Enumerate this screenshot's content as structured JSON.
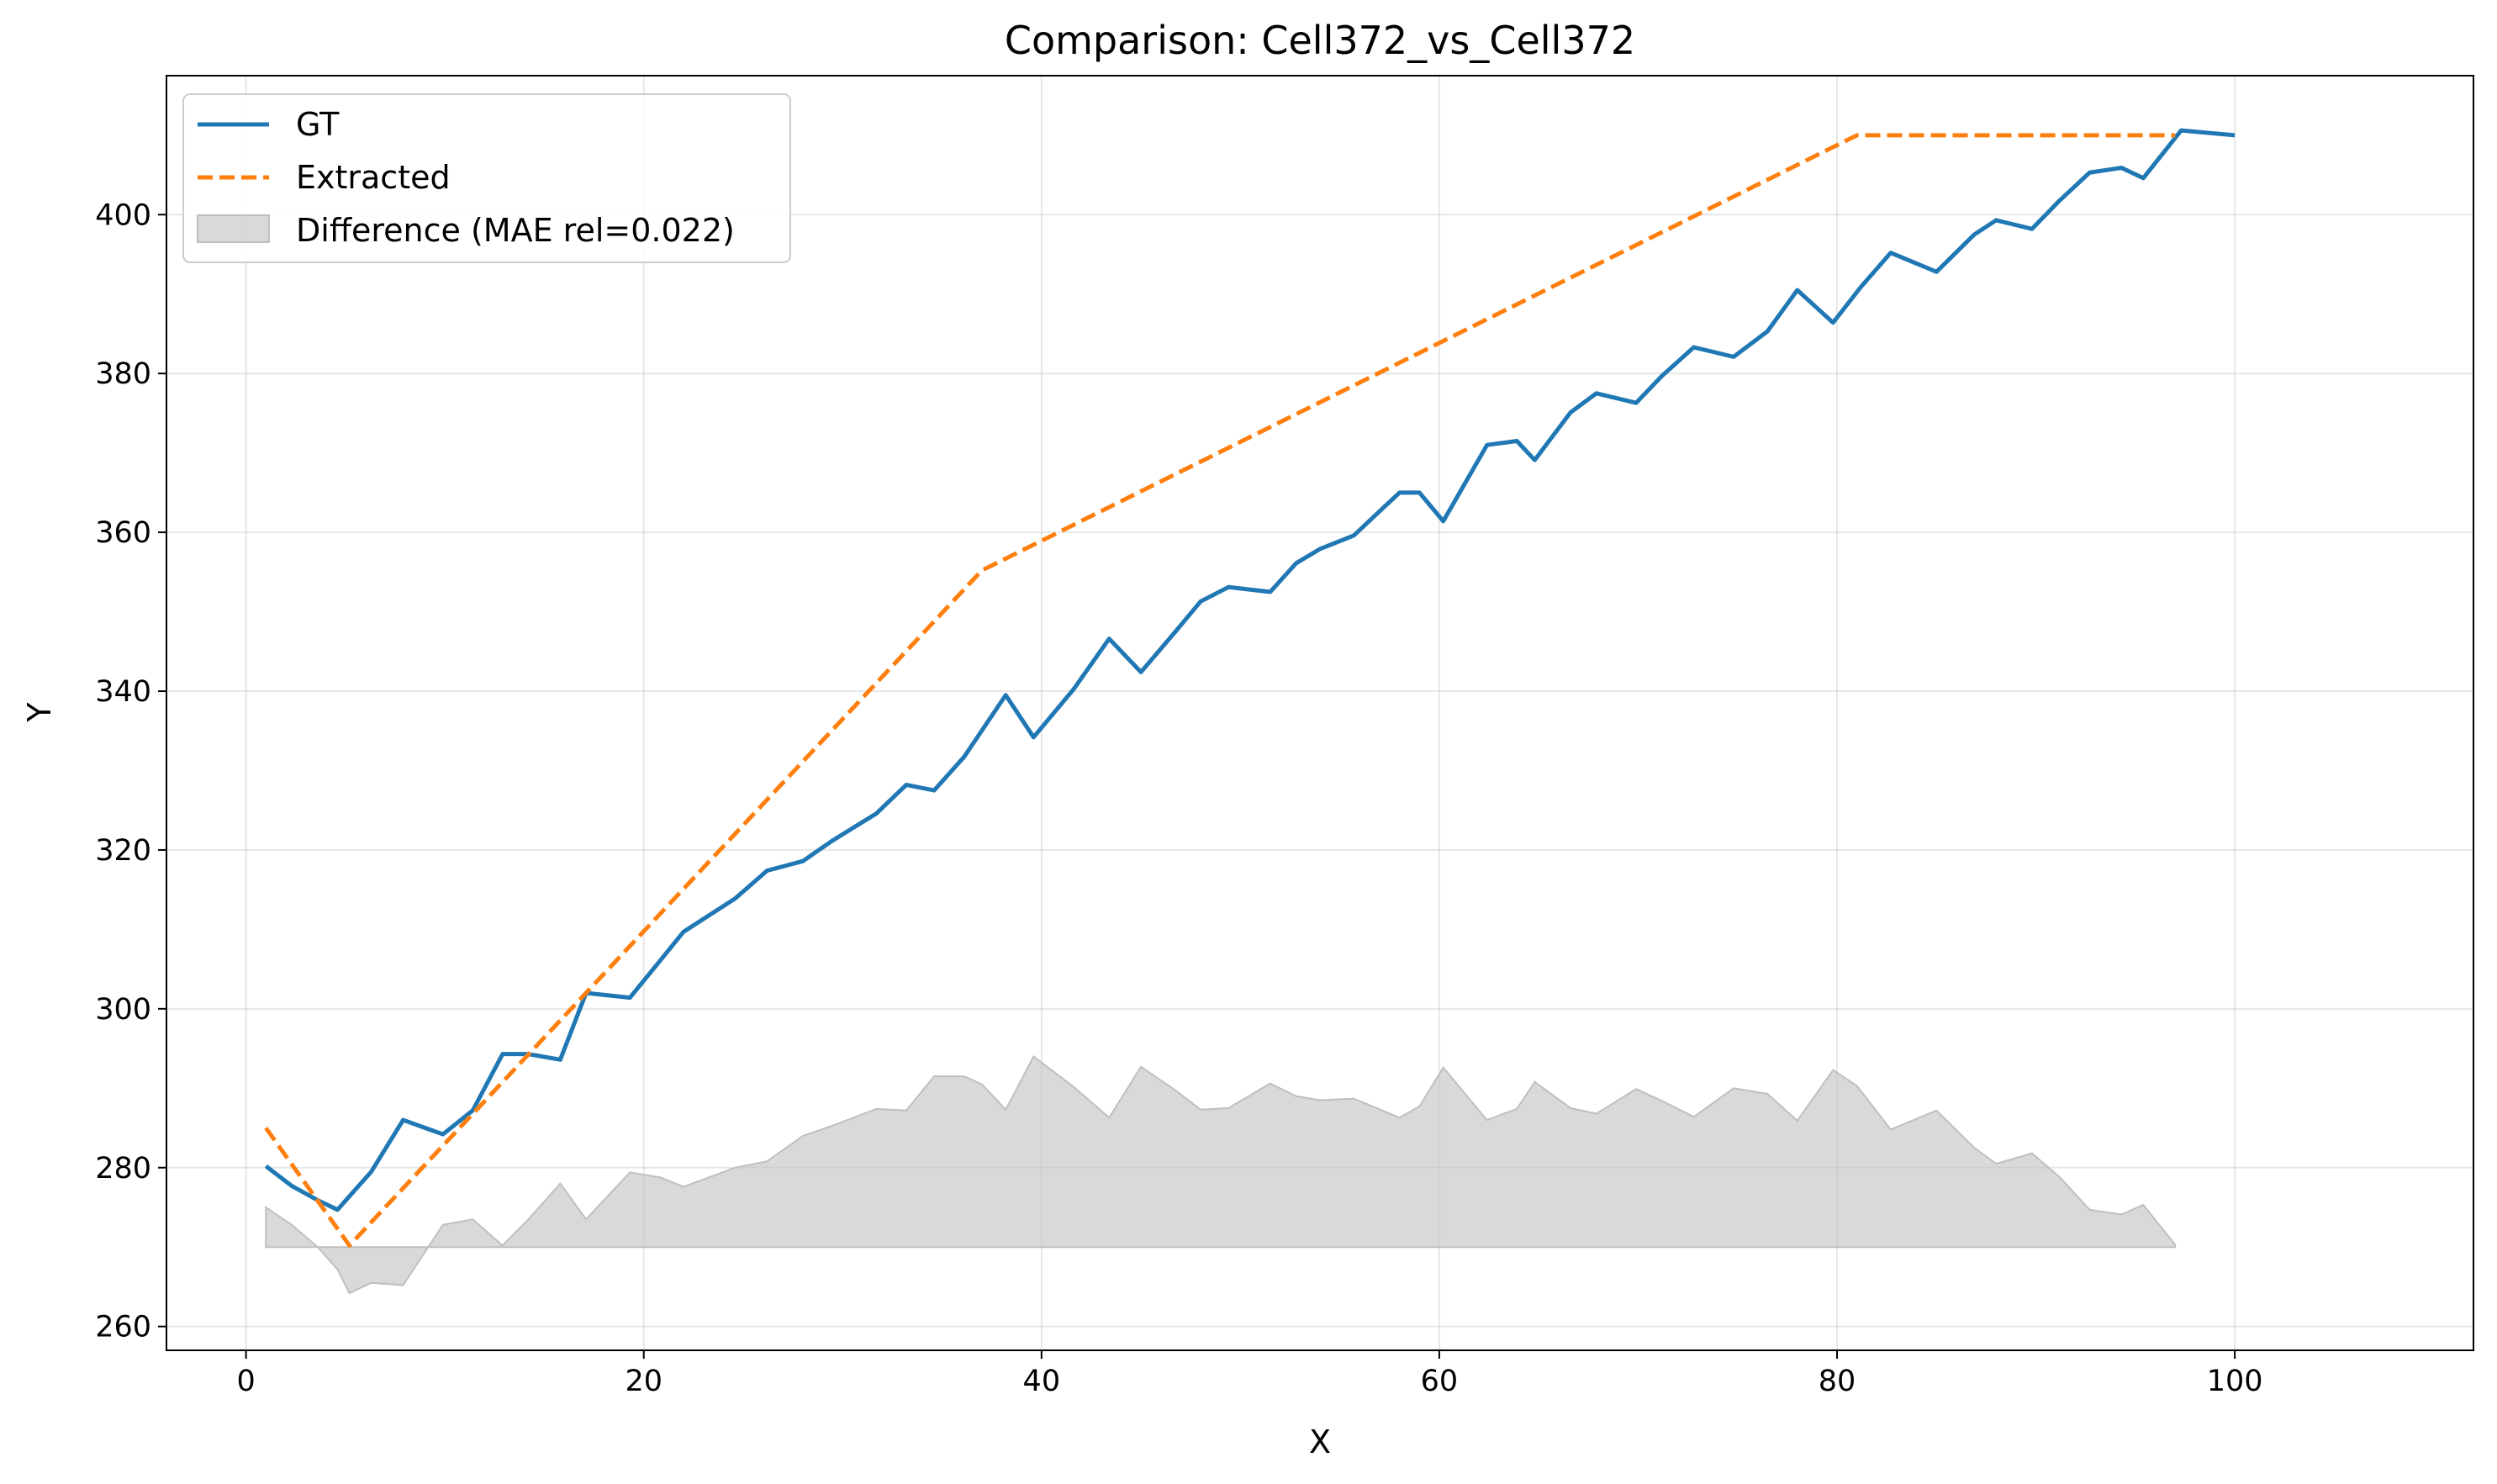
{
  "chart_data": {
    "type": "line",
    "title": "Comparison: Cell372_vs_Cell372",
    "xlabel": "X",
    "ylabel": "Y",
    "xlim": [
      -4,
      112
    ],
    "ylim": [
      257,
      417.5
    ],
    "xticks": [
      0,
      20,
      40,
      60,
      80,
      100
    ],
    "yticks": [
      260,
      280,
      300,
      320,
      340,
      360,
      380,
      400
    ],
    "grid": true,
    "legend_position": "top-left",
    "colors": {
      "gt": "#1f77b4",
      "extracted": "#ff7f0e",
      "difference": "#bfbfbf"
    },
    "baseline": 270,
    "series": [
      {
        "name": "GT",
        "style": "solid",
        "x": [
          1,
          2.3,
          3.6,
          4.6,
          6.3,
          7.9,
          9.9,
          11.4,
          12.9,
          14.2,
          15.8,
          17.1,
          19.3,
          20.8,
          22.0,
          24.6,
          26.2,
          28.0,
          29.5,
          31.7,
          33.2,
          34.6,
          36.1,
          38.2,
          39.6,
          41.6,
          43.4,
          45.0,
          46.7,
          48.0,
          49.4,
          51.5,
          52.8,
          54.0,
          55.7,
          58.0,
          59.0,
          60.2,
          62.4,
          63.9,
          64.8,
          66.6,
          67.9,
          69.9,
          71.2,
          72.8,
          74.8,
          76.5,
          78.0,
          79.8,
          81.2,
          82.7,
          85.0,
          86.9,
          88.0,
          89.8,
          91.2,
          92.7,
          94.3,
          95.4,
          97.3,
          100
        ],
        "y": [
          280.2,
          277.7,
          275.9,
          274.7,
          279.5,
          286.0,
          284.2,
          287.2,
          294.3,
          294.3,
          293.6,
          302.0,
          301.4,
          306.0,
          309.7,
          313.9,
          317.4,
          318.6,
          321.2,
          324.6,
          328.2,
          327.5,
          331.7,
          339.5,
          334.2,
          340.2,
          346.6,
          342.4,
          347.4,
          351.3,
          353.1,
          352.5,
          356.1,
          357.9,
          359.6,
          365.0,
          365.0,
          361.4,
          371.0,
          371.5,
          369.1,
          375.1,
          377.5,
          376.3,
          379.7,
          383.3,
          382.1,
          385.3,
          390.5,
          386.4,
          390.9,
          395.2,
          392.8,
          397.5,
          399.3,
          398.2,
          401.8,
          405.3,
          405.9,
          404.6,
          410.6,
          410.0
        ]
      },
      {
        "name": "Extracted",
        "style": "dashed",
        "x": [
          1,
          5.2,
          37,
          81,
          97
        ],
        "y": [
          285,
          270.2,
          355.2,
          410,
          410
        ]
      },
      {
        "name": "Difference (MAE rel=0.022)",
        "style": "fill",
        "x": [
          1,
          2.3,
          3.6,
          4.6,
          5.2,
          6.3,
          7.9,
          9.9,
          11.4,
          12.9,
          14.2,
          15.8,
          17.1,
          19.3,
          20.8,
          22.0,
          24.6,
          26.2,
          28.0,
          29.5,
          31.7,
          33.2,
          34.6,
          36.1,
          37.0,
          38.2,
          39.6,
          41.6,
          43.4,
          45.0,
          46.7,
          48.0,
          49.4,
          51.5,
          52.8,
          54.0,
          55.7,
          58.0,
          59.0,
          60.2,
          62.4,
          63.9,
          64.8,
          66.6,
          67.9,
          69.9,
          71.2,
          72.8,
          74.8,
          76.5,
          78.0,
          79.8,
          81.0,
          82.7,
          85.0,
          86.9,
          88.0,
          89.8,
          91.2,
          92.7,
          94.3,
          95.4,
          97.0
        ],
        "y": [
          275.0,
          272.8,
          270.0,
          267.2,
          264.2,
          265.5,
          265.2,
          272.8,
          273.5,
          270.2,
          273.5,
          278.0,
          273.5,
          279.4,
          278.8,
          277.6,
          280.0,
          280.8,
          284.0,
          285.3,
          287.4,
          287.2,
          291.5,
          291.5,
          290.5,
          287.3,
          294.0,
          290.2,
          286.3,
          292.7,
          289.8,
          287.3,
          287.5,
          290.6,
          289.0,
          288.5,
          288.7,
          286.3,
          287.7,
          292.6,
          286.0,
          287.4,
          290.8,
          287.5,
          286.8,
          289.9,
          288.4,
          286.4,
          290.0,
          289.3,
          285.9,
          292.3,
          290.3,
          284.8,
          287.2,
          282.5,
          280.5,
          281.8,
          278.8,
          274.7,
          274.1,
          275.3,
          270.3
        ]
      }
    ]
  }
}
